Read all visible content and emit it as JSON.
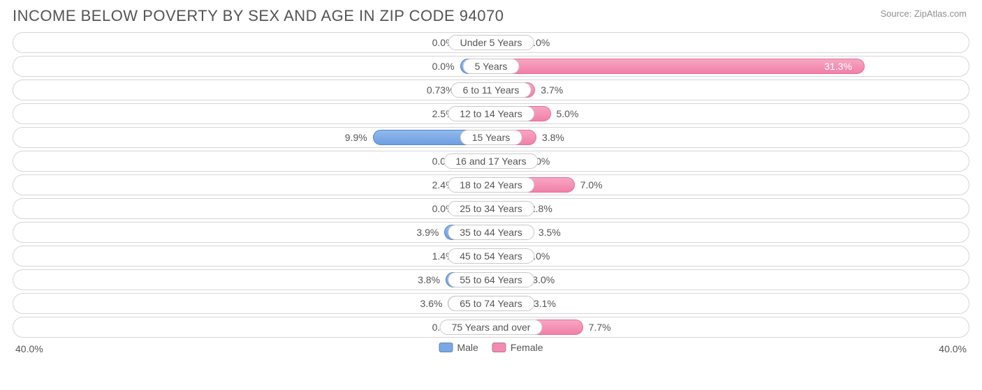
{
  "title": "INCOME BELOW POVERTY BY SEX AND AGE IN ZIP CODE 94070",
  "source": "Source: ZipAtlas.com",
  "axis_max": 40.0,
  "axis_label_left": "40.0%",
  "axis_label_right": "40.0%",
  "min_bar_pct": 6.5,
  "colors": {
    "male_fill_top": "#93b9ea",
    "male_fill_bottom": "#6d9fe2",
    "male_border": "#4f85d4",
    "female_fill_top": "#f7a6c2",
    "female_fill_bottom": "#f180a9",
    "female_border": "#e96a98",
    "track_border": "#d6d6d6",
    "text": "#555555",
    "title_text": "#545454",
    "source_text": "#909090",
    "background": "#ffffff"
  },
  "legend": {
    "male": "Male",
    "female": "Female"
  },
  "rows": [
    {
      "label": "Under 5 Years",
      "male": 0.0,
      "female": 0.0,
      "male_txt": "0.0%",
      "female_txt": "0.0%"
    },
    {
      "label": "5 Years",
      "male": 0.0,
      "female": 31.3,
      "male_txt": "0.0%",
      "female_txt": "31.3%"
    },
    {
      "label": "6 to 11 Years",
      "male": 0.73,
      "female": 3.7,
      "male_txt": "0.73%",
      "female_txt": "3.7%"
    },
    {
      "label": "12 to 14 Years",
      "male": 2.5,
      "female": 5.0,
      "male_txt": "2.5%",
      "female_txt": "5.0%"
    },
    {
      "label": "15 Years",
      "male": 9.9,
      "female": 3.8,
      "male_txt": "9.9%",
      "female_txt": "3.8%"
    },
    {
      "label": "16 and 17 Years",
      "male": 0.0,
      "female": 0.0,
      "male_txt": "0.0%",
      "female_txt": "0.0%"
    },
    {
      "label": "18 to 24 Years",
      "male": 2.4,
      "female": 7.0,
      "male_txt": "2.4%",
      "female_txt": "7.0%"
    },
    {
      "label": "25 to 34 Years",
      "male": 0.0,
      "female": 2.8,
      "male_txt": "0.0%",
      "female_txt": "2.8%"
    },
    {
      "label": "35 to 44 Years",
      "male": 3.9,
      "female": 3.5,
      "male_txt": "3.9%",
      "female_txt": "3.5%"
    },
    {
      "label": "45 to 54 Years",
      "male": 1.4,
      "female": 2.0,
      "male_txt": "1.4%",
      "female_txt": "2.0%"
    },
    {
      "label": "55 to 64 Years",
      "male": 3.8,
      "female": 3.0,
      "male_txt": "3.8%",
      "female_txt": "3.0%"
    },
    {
      "label": "65 to 74 Years",
      "male": 3.6,
      "female": 3.1,
      "male_txt": "3.6%",
      "female_txt": "3.1%"
    },
    {
      "label": "75 Years and over",
      "male": 0.0,
      "female": 7.7,
      "male_txt": "0.0%",
      "female_txt": "7.7%"
    }
  ]
}
